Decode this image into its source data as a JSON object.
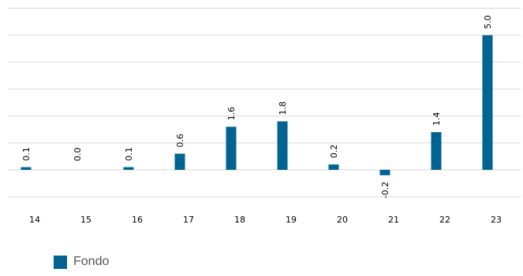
{
  "chart_data": {
    "type": "bar",
    "categories": [
      "14",
      "15",
      "16",
      "17",
      "18",
      "19",
      "20",
      "21",
      "22",
      "23"
    ],
    "series": [
      {
        "name": "Fondo",
        "values": [
          0.1,
          0.0,
          0.1,
          0.6,
          1.6,
          1.8,
          0.2,
          -0.2,
          1.4,
          5.0
        ],
        "labels": [
          "0.1",
          "0.0",
          "0.1",
          "0.6",
          "1.6",
          "1.8",
          "0.2",
          "-0.2",
          "1.4",
          "5.0"
        ]
      }
    ],
    "ylim": [
      -1,
      6
    ],
    "grid": true,
    "legend_position": "bottom-left",
    "colors": {
      "bar": "#006391",
      "grid": "#d9d9d9",
      "text": "#000000"
    }
  },
  "legend": {
    "label": "Fondo"
  }
}
